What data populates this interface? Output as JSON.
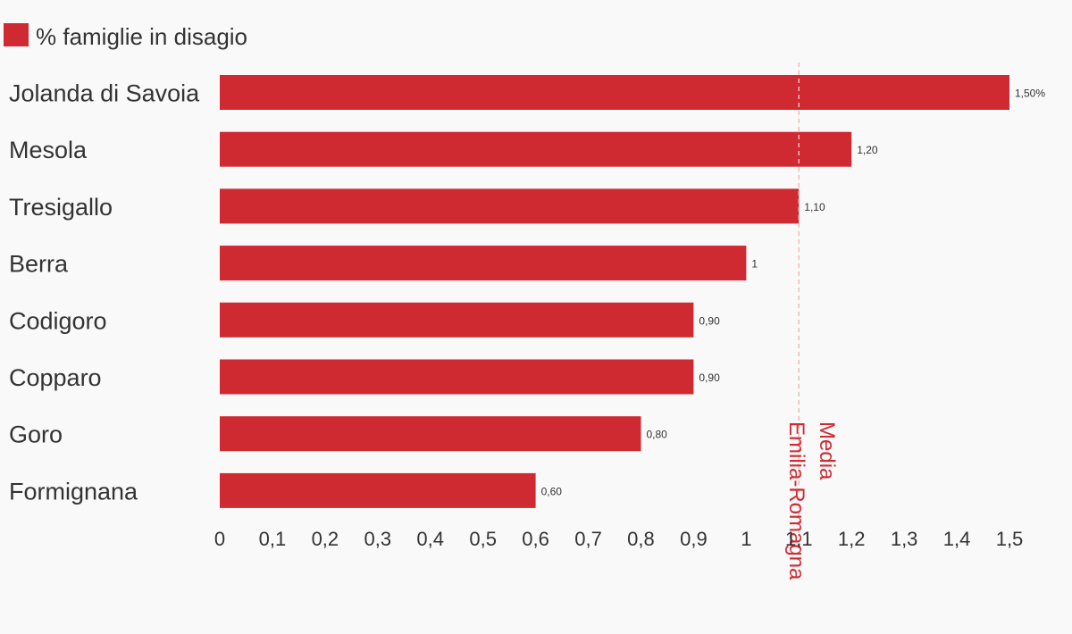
{
  "chart_data": {
    "type": "bar",
    "orientation": "horizontal",
    "categories": [
      "Jolanda di Savoia",
      "Mesola",
      "Tresigallo",
      "Berra",
      "Codigoro",
      "Copparo",
      "Goro",
      "Formignana"
    ],
    "series": [
      {
        "name": "% famiglie in disagio",
        "color": "#cf2a31",
        "values": [
          1.5,
          1.2,
          1.1,
          1.0,
          0.9,
          0.9,
          0.8,
          0.6
        ],
        "value_labels": [
          "1,50%",
          "1,20",
          "1,10",
          "1",
          "0,90",
          "0,90",
          "0,80",
          "0,60"
        ]
      }
    ],
    "xlim": [
      0,
      1.5
    ],
    "x_ticks": [
      0,
      0.1,
      0.2,
      0.3,
      0.4,
      0.5,
      0.6,
      0.7,
      0.8,
      0.9,
      1,
      1.1,
      1.2,
      1.3,
      1.4,
      1.5
    ],
    "x_tick_labels": [
      "0",
      "0,1",
      "0,2",
      "0,3",
      "0,4",
      "0,5",
      "0,6",
      "0,7",
      "0,8",
      "0,9",
      "1",
      "1,1",
      "1,2",
      "1,3",
      "1,4",
      "1,5"
    ],
    "reference_line": {
      "value": 1.1,
      "label_lines": [
        "Media",
        "Emilia-Romagna"
      ],
      "color": "#cf2a31",
      "line_color": "#f5b8bc"
    },
    "legend_position": "top-left",
    "grid": false
  }
}
